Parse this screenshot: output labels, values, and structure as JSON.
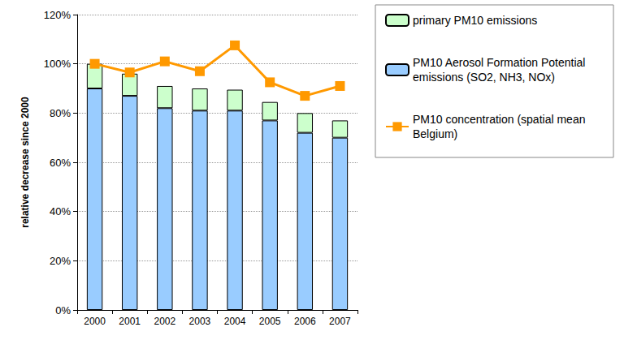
{
  "chart_data": {
    "type": "bar",
    "ylabel": "relative decrease since 2000",
    "categories": [
      "2000",
      "2001",
      "2002",
      "2003",
      "2004",
      "2005",
      "2006",
      "2007"
    ],
    "stacked": true,
    "grid": true,
    "legend": "right",
    "ylim": [
      0,
      120
    ],
    "yticks": [
      {
        "value": 0,
        "label": "0%"
      },
      {
        "value": 20,
        "label": "20%"
      },
      {
        "value": 40,
        "label": "40%"
      },
      {
        "value": 60,
        "label": "60%"
      },
      {
        "value": 80,
        "label": "80%"
      },
      {
        "value": 100,
        "label": "100%"
      },
      {
        "value": 120,
        "label": "120%"
      }
    ],
    "series": [
      {
        "name": "PM10 Aerosol Formation Potential emissions (SO2, NH3, NOx)",
        "type": "bar",
        "color": "#99ccff",
        "values": [
          90,
          87,
          82,
          81,
          81,
          77,
          72,
          70
        ]
      },
      {
        "name": "primary PM10 emissions",
        "type": "bar",
        "color": "#ccffcc",
        "values": [
          10,
          9,
          9,
          9,
          8.5,
          7.5,
          8,
          7
        ]
      },
      {
        "name": "PM10 concentration (spatial mean Belgium)",
        "type": "line",
        "color": "#ff9900",
        "marker": "square",
        "values": [
          100,
          96.5,
          101,
          97,
          107.5,
          92.5,
          87,
          91
        ]
      }
    ]
  }
}
